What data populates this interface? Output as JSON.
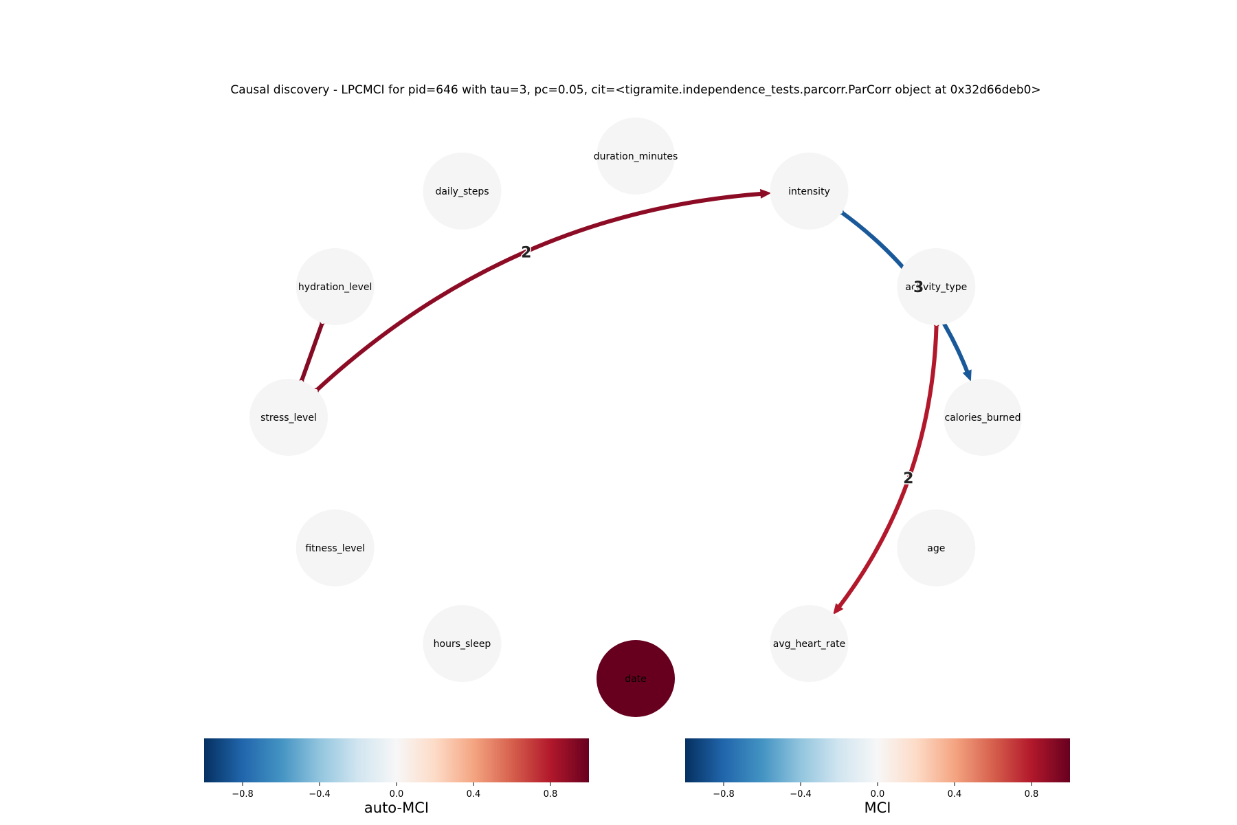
{
  "title": "Causal discovery - LPCMCI for pid=646 with tau=3, pc=0.05, cit=<tigramite.independence_tests.parcorr.ParCorr object at 0x32d66deb0>",
  "nodes": [
    {
      "id": "duration_minutes",
      "label": "duration_minutes",
      "auto_mci": null
    },
    {
      "id": "intensity",
      "label": "intensity",
      "auto_mci": null
    },
    {
      "id": "activity_type",
      "label": "activity_type",
      "auto_mci": null
    },
    {
      "id": "calories_burned",
      "label": "calories_burned",
      "auto_mci": null
    },
    {
      "id": "age",
      "label": "age",
      "auto_mci": null
    },
    {
      "id": "avg_heart_rate",
      "label": "avg_heart_rate",
      "auto_mci": null
    },
    {
      "id": "date",
      "label": "date",
      "auto_mci": 1.0
    },
    {
      "id": "hours_sleep",
      "label": "hours_sleep",
      "auto_mci": null
    },
    {
      "id": "fitness_level",
      "label": "fitness_level",
      "auto_mci": null
    },
    {
      "id": "stress_level",
      "label": "stress_level",
      "auto_mci": null
    },
    {
      "id": "hydration_level",
      "label": "hydration_level",
      "auto_mci": null
    },
    {
      "id": "daily_steps",
      "label": "daily_steps",
      "auto_mci": null
    }
  ],
  "edges": [
    {
      "from": "intensity",
      "to": "calories_burned",
      "type": "o->",
      "lag_label": "3",
      "mci": -0.85
    },
    {
      "from": "activity_type",
      "to": "avg_heart_rate",
      "type": "o->",
      "lag_label": "2",
      "mci": 0.8
    },
    {
      "from": "stress_level",
      "to": "intensity",
      "type": "o->",
      "lag_label": "2",
      "mci": 0.9
    },
    {
      "from": "stress_level",
      "to": "hydration_level",
      "type": "o-o",
      "lag_label": "",
      "mci": 0.92
    }
  ],
  "colorbars": [
    {
      "id": "auto-mci",
      "label": "auto-MCI",
      "range": [
        -1.0,
        1.0
      ],
      "ticks": [
        -0.8,
        -0.4,
        0.0,
        0.4,
        0.8
      ],
      "tick_labels": [
        "−0.8",
        "−0.4",
        "0.0",
        "0.4",
        "0.8"
      ],
      "colormap": "RdBu_r"
    },
    {
      "id": "mci",
      "label": "MCI",
      "range": [
        -1.0,
        1.0
      ],
      "ticks": [
        -0.8,
        -0.4,
        0.0,
        0.4,
        0.8
      ],
      "tick_labels": [
        "−0.8",
        "−0.4",
        "0.0",
        "0.4",
        "0.8"
      ],
      "colormap": "RdBu_r"
    }
  ],
  "colors": {
    "node_default": "#f5f5f5",
    "colormap_stops": [
      "#053061",
      "#2166ac",
      "#4393c3",
      "#92c5de",
      "#d1e5f0",
      "#f7f7f7",
      "#fddbc7",
      "#f4a582",
      "#d6604d",
      "#b2182b",
      "#67001f"
    ]
  }
}
